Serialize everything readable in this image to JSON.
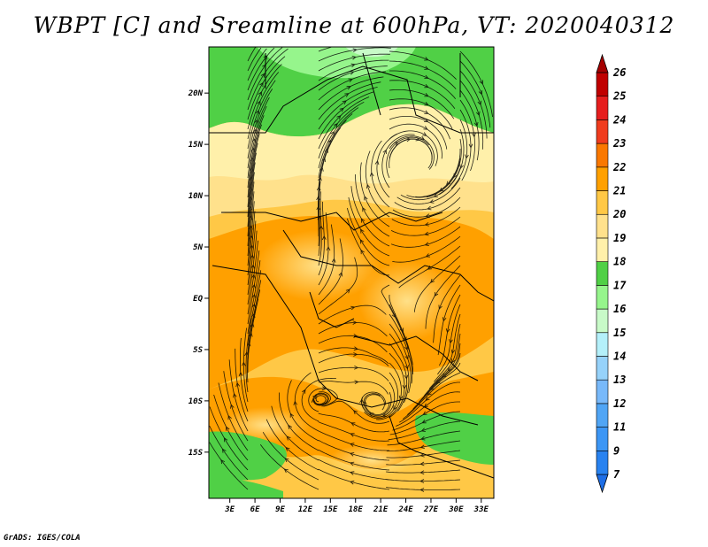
{
  "title": "WBPT [C] and Sreamline at 600hPa, VT: 2020040312",
  "credit": "GrADS: IGES/COLA",
  "map": {
    "lat_labels": [
      "20N",
      "15N",
      "10N",
      "5N",
      "EQ",
      "5S",
      "10S",
      "15S"
    ],
    "lon_labels": [
      "3E",
      "6E",
      "9E",
      "12E",
      "15E",
      "18E",
      "21E",
      "24E",
      "27E",
      "30E",
      "33E"
    ],
    "lat_range": [
      -19.5,
      24.5
    ],
    "lon_range": [
      0.5,
      34.5
    ]
  },
  "colorbar": {
    "labels": [
      "7",
      "9",
      "11",
      "12",
      "13",
      "14",
      "15",
      "16",
      "17",
      "18",
      "19",
      "20",
      "21",
      "22",
      "23",
      "24",
      "25",
      "26"
    ],
    "colors": [
      "#1e6ee6",
      "#2882f0",
      "#3c96f5",
      "#50a5f5",
      "#78b9fa",
      "#96d2fa",
      "#b4f0fa",
      "#c8fac8",
      "#96f58c",
      "#50d046",
      "#fff0aa",
      "#ffe18c",
      "#ffc846",
      "#ffa000",
      "#fa7800",
      "#f03c1e",
      "#e61e1e",
      "#c00000",
      "#a50000"
    ]
  }
}
